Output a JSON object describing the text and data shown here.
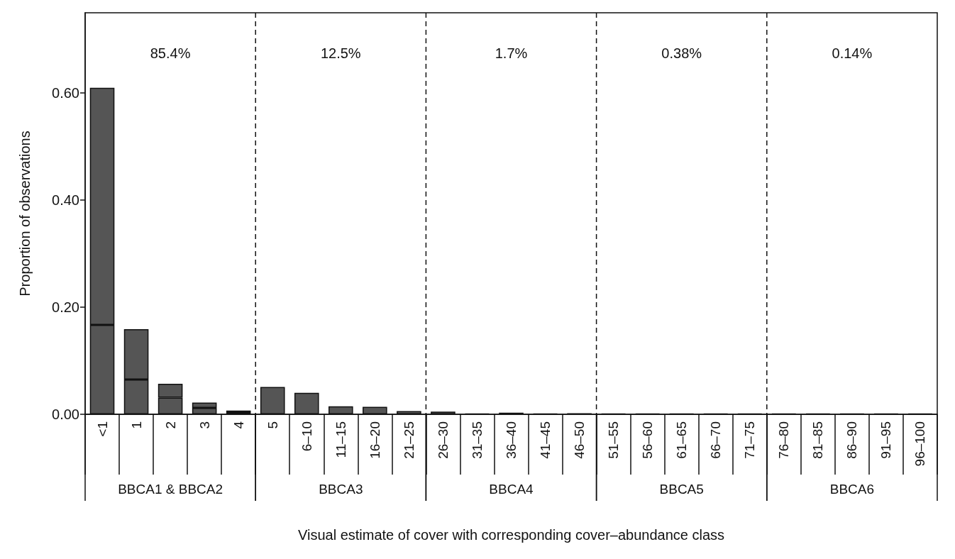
{
  "chart_data": {
    "type": "bar",
    "xlabel": "Visual estimate of cover with corresponding cover–abundance class",
    "ylabel": "Proportion of observations",
    "categories": [
      "<1",
      "1",
      "2",
      "3",
      "4",
      "5",
      "6–10",
      "11–15",
      "16–20",
      "21–25",
      "26–30",
      "31–35",
      "36–40",
      "41–45",
      "46–50",
      "51–55",
      "56–60",
      "61–65",
      "66–70",
      "71–75",
      "76–80",
      "81–85",
      "86–90",
      "91–95",
      "96–100"
    ],
    "series": [
      {
        "color": "#555555",
        "values": [
          0.167,
          0.065,
          0.031,
          0.012,
          0.004,
          0.051,
          0.04,
          0.015,
          0.014,
          0.006,
          0.005,
          0.001,
          0.003,
          0.001,
          0.002,
          0.001,
          0.001,
          0.001,
          0.001,
          0.001,
          0.001,
          0.001,
          0.001,
          0.001,
          0.001
        ]
      },
      {
        "color": "#555555",
        "values": [
          0.443,
          0.094,
          0.026,
          0.01,
          0.003,
          null,
          null,
          null,
          null,
          null,
          null,
          null,
          null,
          null,
          null,
          null,
          null,
          null,
          null,
          null,
          null,
          null,
          null,
          null,
          null
        ]
      }
    ],
    "stacked": true,
    "ylim": [
      0,
      0.75
    ],
    "yticks": [
      {
        "value": 0,
        "label": "0.00"
      },
      {
        "value": 0.2,
        "label": "0.20"
      },
      {
        "value": 0.4,
        "label": "0.40"
      },
      {
        "value": 0.6,
        "label": "0.60"
      }
    ],
    "annotations": [
      "85.4%",
      "12.5%",
      "1.7%",
      "0.38%",
      "0.14%",
      "BBCA1 & BBCA2",
      "BBCA3",
      "BBCA4",
      "BBCA5",
      "BBCA6"
    ],
    "grid": false
  }
}
